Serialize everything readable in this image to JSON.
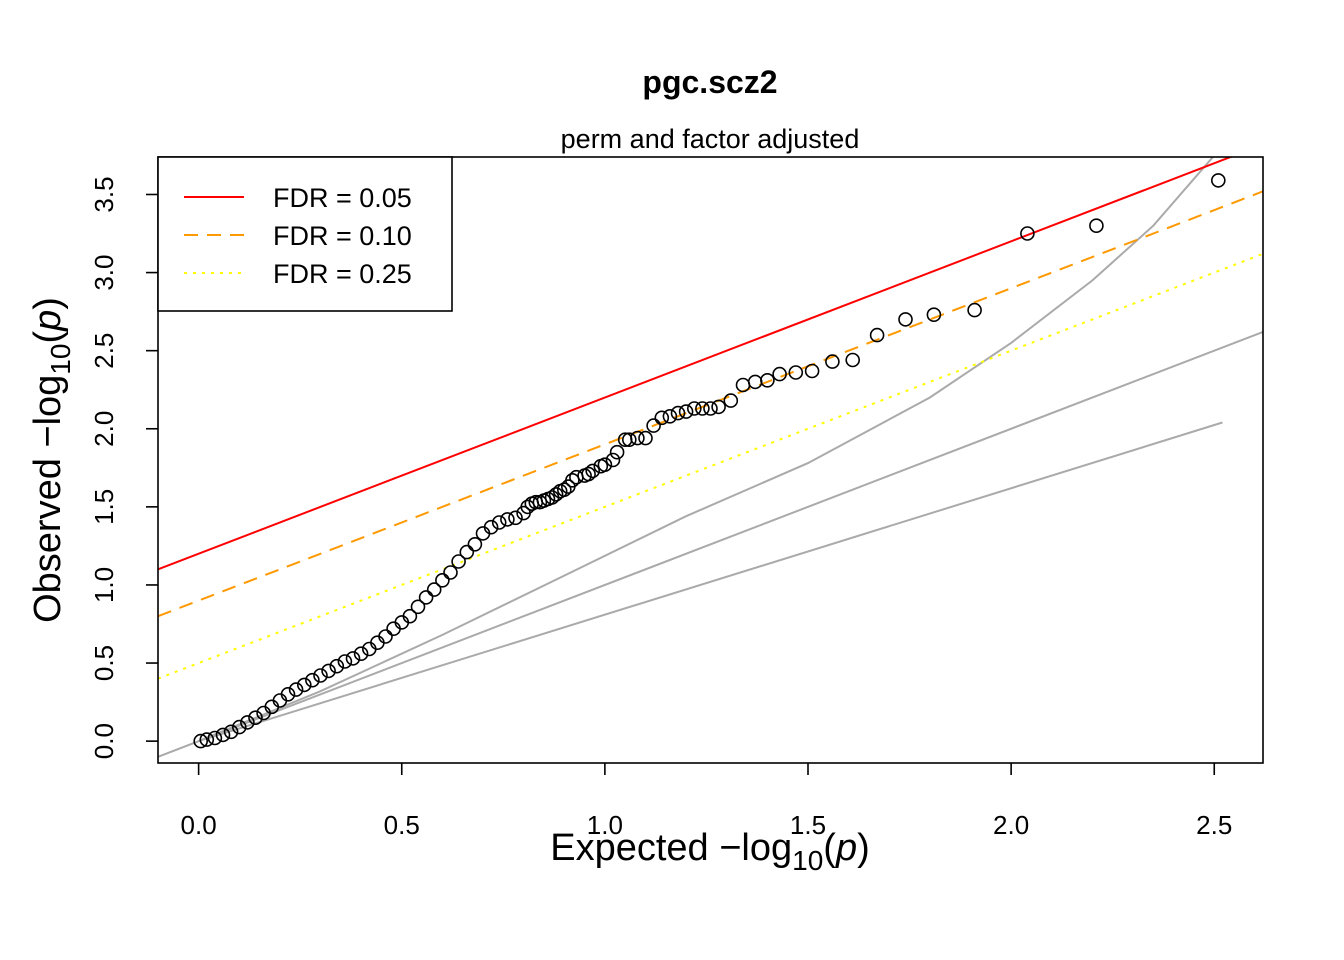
{
  "chart_data": {
    "type": "scatter",
    "title": "pgc.scz2",
    "subtitle": "perm and factor adjusted",
    "xlabel": {
      "prefix": "Expected  −log",
      "sub": "10",
      "suffix": "(",
      "italic": "p",
      "close": ")"
    },
    "ylabel": {
      "prefix": "Observed  −log",
      "sub": "10",
      "suffix": "(",
      "italic": "p",
      "close": ")"
    },
    "xlim": [
      -0.1,
      2.62
    ],
    "ylim": [
      -0.14,
      3.74
    ],
    "x_ticks": [
      0.0,
      0.5,
      1.0,
      1.5,
      2.0,
      2.5
    ],
    "x_tick_labels": [
      "0.0",
      "0.5",
      "1.0",
      "1.5",
      "2.0",
      "2.5"
    ],
    "y_ticks": [
      0.0,
      0.5,
      1.0,
      1.5,
      2.0,
      2.5,
      3.0,
      3.5
    ],
    "y_tick_labels": [
      "0.0",
      "0.5",
      "1.0",
      "1.5",
      "2.0",
      "2.5",
      "3.0",
      "3.5"
    ],
    "legend": {
      "position": "top-left",
      "entries": [
        {
          "label": "FDR = 0.05",
          "color": "#ff0000",
          "dash": "solid"
        },
        {
          "label": "FDR = 0.10",
          "color": "#ff9900",
          "dash": "dashed"
        },
        {
          "label": "FDR = 0.25",
          "color": "#ffff00",
          "dash": "dotted"
        }
      ]
    },
    "fdr_lines": [
      {
        "name": "FDR = 0.05",
        "color": "#ff0000",
        "dash": "solid",
        "intercept": 1.2,
        "slope": 1.0
      },
      {
        "name": "FDR = 0.10",
        "color": "#ff9900",
        "dash": "dashed",
        "intercept": 0.9,
        "slope": 1.0
      },
      {
        "name": "FDR = 0.25",
        "color": "#ffff00",
        "dash": "dotted",
        "intercept": 0.5,
        "slope": 1.0
      }
    ],
    "reference_lines": {
      "color": "#aaaaaa",
      "identity": {
        "x": [
          -0.1,
          2.62
        ],
        "y": [
          -0.1,
          2.62
        ]
      },
      "upper_band": {
        "x": [
          0.0,
          0.3,
          0.6,
          0.9,
          1.2,
          1.5,
          1.8,
          2.0,
          2.2,
          2.35,
          2.5
        ],
        "y": [
          0.0,
          0.32,
          0.68,
          1.06,
          1.44,
          1.78,
          2.2,
          2.55,
          2.95,
          3.3,
          3.75
        ]
      },
      "lower_band": {
        "x": [
          0.0,
          2.52
        ],
        "y": [
          0.0,
          2.04
        ]
      }
    },
    "points": {
      "x": [
        2.51,
        2.21,
        2.04,
        1.91,
        1.81,
        1.74,
        1.67,
        1.61,
        1.56,
        1.51,
        1.47,
        1.43,
        1.4,
        1.37,
        1.34,
        1.31,
        1.28,
        1.26,
        1.24,
        1.22,
        1.2,
        1.18,
        1.16,
        1.14,
        1.12,
        1.1,
        1.08,
        1.06,
        1.05,
        1.03,
        1.02,
        1.0,
        0.99,
        0.97,
        0.96,
        0.95,
        0.93,
        0.92,
        0.91,
        0.9,
        0.89,
        0.88,
        0.87,
        0.86,
        0.85,
        0.84,
        0.83,
        0.82,
        0.81,
        0.8,
        0.78,
        0.76,
        0.74,
        0.72,
        0.7,
        0.68,
        0.66,
        0.64,
        0.62,
        0.6,
        0.58,
        0.56,
        0.54,
        0.52,
        0.5,
        0.48,
        0.46,
        0.44,
        0.42,
        0.4,
        0.38,
        0.36,
        0.34,
        0.32,
        0.3,
        0.28,
        0.26,
        0.24,
        0.22,
        0.2,
        0.18,
        0.16,
        0.14,
        0.12,
        0.1,
        0.08,
        0.06,
        0.04,
        0.02,
        0.005
      ],
      "y": [
        3.59,
        3.3,
        3.25,
        2.76,
        2.73,
        2.7,
        2.6,
        2.44,
        2.43,
        2.37,
        2.36,
        2.35,
        2.31,
        2.3,
        2.28,
        2.18,
        2.14,
        2.13,
        2.13,
        2.13,
        2.11,
        2.1,
        2.08,
        2.07,
        2.02,
        1.94,
        1.94,
        1.93,
        1.93,
        1.85,
        1.8,
        1.77,
        1.76,
        1.73,
        1.71,
        1.7,
        1.69,
        1.67,
        1.63,
        1.61,
        1.6,
        1.58,
        1.56,
        1.55,
        1.54,
        1.53,
        1.53,
        1.52,
        1.5,
        1.46,
        1.43,
        1.42,
        1.4,
        1.37,
        1.33,
        1.26,
        1.21,
        1.15,
        1.08,
        1.03,
        0.97,
        0.92,
        0.86,
        0.8,
        0.76,
        0.72,
        0.67,
        0.63,
        0.59,
        0.56,
        0.53,
        0.51,
        0.48,
        0.45,
        0.42,
        0.39,
        0.36,
        0.33,
        0.3,
        0.26,
        0.22,
        0.18,
        0.15,
        0.12,
        0.09,
        0.06,
        0.04,
        0.02,
        0.01,
        0.0
      ]
    }
  }
}
